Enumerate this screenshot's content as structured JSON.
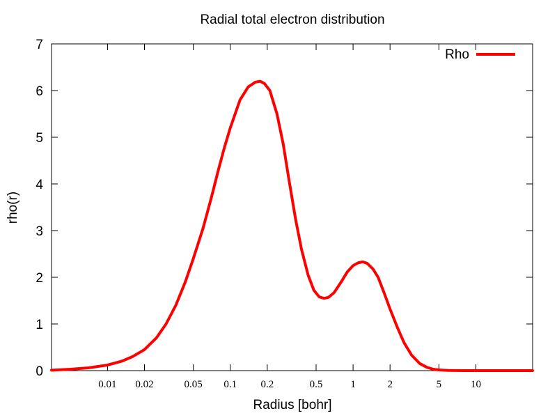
{
  "chart_data": {
    "type": "line",
    "title": "Radial total electron distribution",
    "xlabel": "Radius [bohr]",
    "ylabel": "rho(r)",
    "x_scale": "log",
    "xlim": [
      0.0035,
      29
    ],
    "ylim": [
      0,
      7
    ],
    "x_ticks": [
      {
        "value": 0.01,
        "label": "0.01"
      },
      {
        "value": 0.02,
        "label": "0.02"
      },
      {
        "value": 0.05,
        "label": "0.05"
      },
      {
        "value": 0.1,
        "label": "0.1"
      },
      {
        "value": 0.2,
        "label": "0.2"
      },
      {
        "value": 0.5,
        "label": "0.5"
      },
      {
        "value": 1,
        "label": "1"
      },
      {
        "value": 2,
        "label": "2"
      },
      {
        "value": 5,
        "label": "5"
      },
      {
        "value": 10,
        "label": "10"
      }
    ],
    "y_ticks": [
      {
        "value": 0,
        "label": "0"
      },
      {
        "value": 1,
        "label": "1"
      },
      {
        "value": 2,
        "label": "2"
      },
      {
        "value": 3,
        "label": "3"
      },
      {
        "value": 4,
        "label": "4"
      },
      {
        "value": 5,
        "label": "5"
      },
      {
        "value": 6,
        "label": "6"
      },
      {
        "value": 7,
        "label": "7"
      }
    ],
    "grid": false,
    "legend_position": "top-right",
    "series": [
      {
        "name": "Rho",
        "color": "#ff0000",
        "points": [
          [
            0.0035,
            0.01
          ],
          [
            0.005,
            0.03
          ],
          [
            0.007,
            0.06
          ],
          [
            0.01,
            0.12
          ],
          [
            0.013,
            0.2
          ],
          [
            0.016,
            0.3
          ],
          [
            0.02,
            0.45
          ],
          [
            0.025,
            0.7
          ],
          [
            0.03,
            1.0
          ],
          [
            0.036,
            1.4
          ],
          [
            0.043,
            1.9
          ],
          [
            0.05,
            2.4
          ],
          [
            0.06,
            3.05
          ],
          [
            0.07,
            3.7
          ],
          [
            0.08,
            4.3
          ],
          [
            0.09,
            4.8
          ],
          [
            0.1,
            5.2
          ],
          [
            0.12,
            5.8
          ],
          [
            0.14,
            6.08
          ],
          [
            0.16,
            6.18
          ],
          [
            0.175,
            6.2
          ],
          [
            0.19,
            6.15
          ],
          [
            0.21,
            6.0
          ],
          [
            0.24,
            5.5
          ],
          [
            0.27,
            4.85
          ],
          [
            0.3,
            4.1
          ],
          [
            0.34,
            3.25
          ],
          [
            0.38,
            2.6
          ],
          [
            0.43,
            2.05
          ],
          [
            0.48,
            1.72
          ],
          [
            0.53,
            1.58
          ],
          [
            0.58,
            1.55
          ],
          [
            0.63,
            1.57
          ],
          [
            0.7,
            1.67
          ],
          [
            0.8,
            1.9
          ],
          [
            0.9,
            2.12
          ],
          [
            1.0,
            2.25
          ],
          [
            1.1,
            2.31
          ],
          [
            1.2,
            2.33
          ],
          [
            1.3,
            2.3
          ],
          [
            1.45,
            2.18
          ],
          [
            1.6,
            2.0
          ],
          [
            1.8,
            1.65
          ],
          [
            2.0,
            1.32
          ],
          [
            2.3,
            0.92
          ],
          [
            2.6,
            0.6
          ],
          [
            3.0,
            0.33
          ],
          [
            3.5,
            0.15
          ],
          [
            4.0,
            0.07
          ],
          [
            4.5,
            0.03
          ],
          [
            5.0,
            0.015
          ],
          [
            6.0,
            0.004
          ],
          [
            8.0,
            0.0
          ],
          [
            12.0,
            0.0
          ],
          [
            20.0,
            0.0
          ],
          [
            29.0,
            0.0
          ]
        ]
      }
    ]
  }
}
